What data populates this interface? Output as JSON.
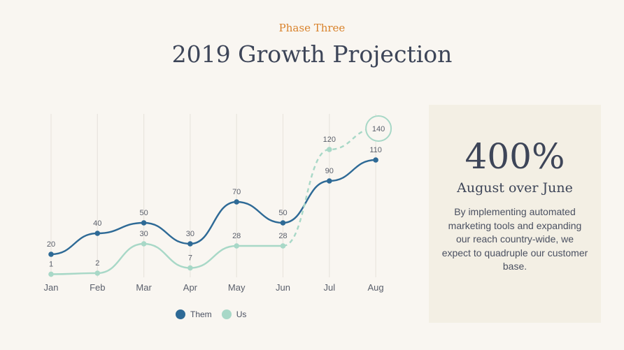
{
  "header": {
    "eyebrow": "Phase Three",
    "title": "2019 Growth Projection"
  },
  "callout": {
    "big_number": "400%",
    "subtitle": "August over June",
    "body": "By implementing automated marketing tools and expanding our reach country-wide, we expect to quadruple our customer base."
  },
  "colors": {
    "them": "#2e6a96",
    "us": "#a8d8c7",
    "accent": "#d9822b",
    "text": "#3d4558"
  },
  "chart_data": {
    "type": "line",
    "categories": [
      "Jan",
      "Feb",
      "Mar",
      "Apr",
      "May",
      "Jun",
      "Jul",
      "Aug"
    ],
    "series": [
      {
        "name": "Them",
        "values": [
          20,
          40,
          50,
          30,
          70,
          50,
          90,
          110
        ],
        "projected_from_index": null
      },
      {
        "name": "Us",
        "values": [
          1,
          2,
          30,
          7,
          28,
          28,
          120,
          140
        ],
        "projected_from_index": 5
      }
    ],
    "data_labels": true,
    "highlighted_point": {
      "series": "Us",
      "category": "Aug"
    },
    "grid": "vertical",
    "legend": "bottom-center",
    "xlabel": "",
    "ylabel": "",
    "ylim": [
      0,
      140
    ]
  }
}
